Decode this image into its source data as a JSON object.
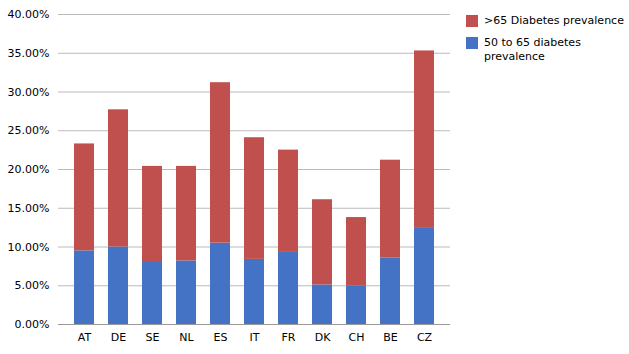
{
  "chart_data": {
    "type": "bar",
    "stacked": true,
    "categories": [
      "AT",
      "DE",
      "SE",
      "NL",
      "ES",
      "IT",
      "FR",
      "DK",
      "CH",
      "BE",
      "CZ"
    ],
    "series": [
      {
        "name": "50 to 65 diabetes\nprevalence",
        "color": "#4472C4",
        "values": [
          0.095,
          0.1,
          0.08,
          0.082,
          0.105,
          0.084,
          0.093,
          0.051,
          0.05,
          0.086,
          0.124
        ]
      },
      {
        "name": ">65 Diabetes prevalence",
        "color": "#C0504D",
        "values": [
          0.138,
          0.177,
          0.124,
          0.122,
          0.207,
          0.157,
          0.132,
          0.11,
          0.088,
          0.126,
          0.229
        ]
      }
    ],
    "ylim": [
      0.0,
      0.4
    ],
    "yticks": [
      {
        "value": 0.0,
        "label": "0.00%"
      },
      {
        "value": 0.05,
        "label": "5.00%"
      },
      {
        "value": 0.1,
        "label": "10.00%"
      },
      {
        "value": 0.15,
        "label": "15.00%"
      },
      {
        "value": 0.2,
        "label": "20.00%"
      },
      {
        "value": 0.25,
        "label": "25.00%"
      },
      {
        "value": 0.3,
        "label": "30.00%"
      },
      {
        "value": 0.35,
        "label": "35.00%"
      },
      {
        "value": 0.4,
        "label": "40.00%"
      }
    ],
    "grid": true,
    "legend": "right"
  }
}
